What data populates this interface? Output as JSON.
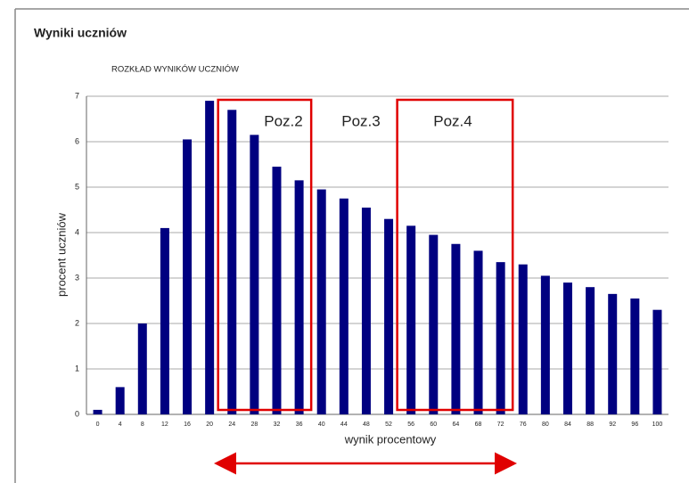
{
  "header": {
    "title": "Wyniki uczniów"
  },
  "chart_data": {
    "type": "bar",
    "title": "ROZKŁAD WYNIKÓW UCZNIÓW",
    "x_label": "wynik procentowy",
    "y_label": "procent uczniów",
    "categories": [
      "0",
      "4",
      "8",
      "12",
      "16",
      "20",
      "24",
      "28",
      "32",
      "36",
      "40",
      "44",
      "48",
      "52",
      "56",
      "60",
      "64",
      "68",
      "72",
      "76",
      "80",
      "84",
      "88",
      "92",
      "96",
      "100"
    ],
    "values": [
      0.1,
      0.6,
      2.0,
      4.1,
      6.05,
      6.9,
      6.7,
      6.15,
      5.45,
      5.15,
      4.95,
      4.75,
      4.55,
      4.3,
      4.15,
      3.95,
      3.75,
      3.6,
      3.35,
      3.3,
      3.05,
      2.9,
      2.8,
      2.65,
      2.55,
      2.3
    ],
    "color": "#000080",
    "ylim": [
      0,
      7
    ],
    "yticks": [
      0,
      1,
      2,
      3,
      4,
      5,
      6,
      7
    ],
    "grid": true,
    "annotations": [
      "Poz.2",
      "Poz.3",
      "Poz.4"
    ]
  }
}
